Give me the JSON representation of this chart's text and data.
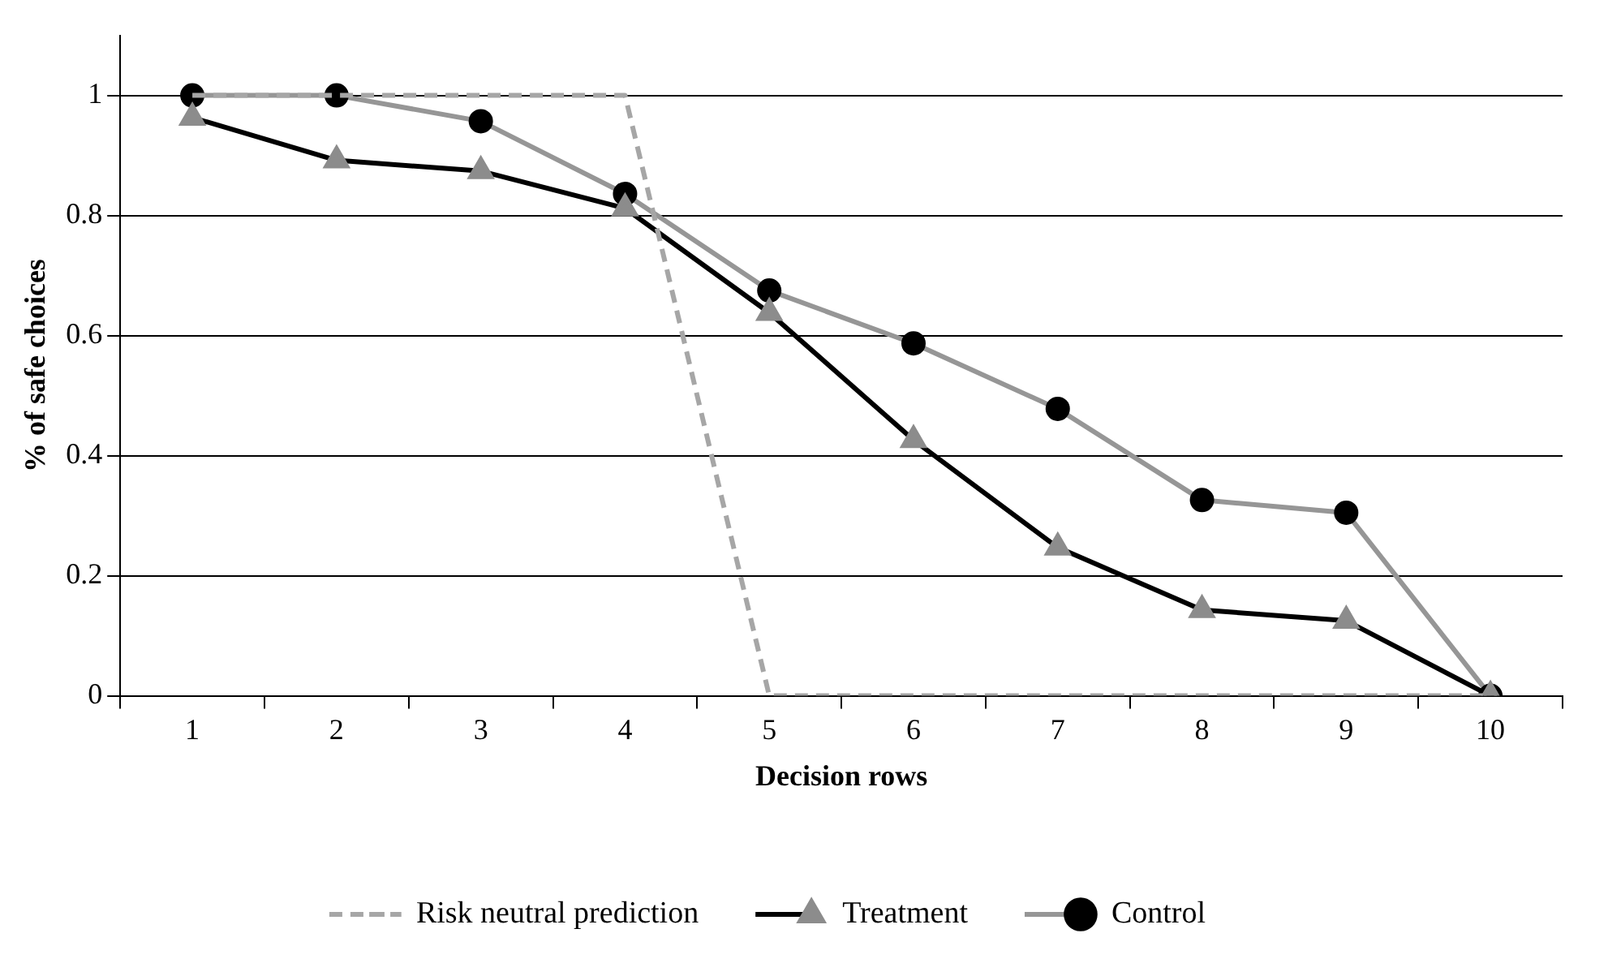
{
  "chart_data": {
    "type": "line",
    "xlabel": "Decision rows",
    "ylabel": "% of safe choices",
    "categories": [
      "1",
      "2",
      "3",
      "4",
      "5",
      "6",
      "7",
      "8",
      "9",
      "10"
    ],
    "series": [
      {
        "name": "Risk neutral prediction",
        "color": "#a6a6a6",
        "line_style": "dashed",
        "marker": "none",
        "values": [
          1,
          1,
          1,
          1,
          0,
          0,
          0,
          0,
          0,
          0
        ]
      },
      {
        "name": "Treatment",
        "color": "#000000",
        "colors": [
          "#8c8c8c",
          "#8c8c8c",
          "#8c8c8c",
          "#8c8c8c",
          "#8c8c8c",
          "#8c8c8c",
          "#8c8c8c",
          "#8c8c8c",
          "#8c8c8c",
          "#8c8c8c"
        ],
        "line_style": "solid",
        "marker": "triangle",
        "values": [
          0.963,
          0.892,
          0.874,
          0.812,
          0.638,
          0.426,
          0.247,
          0.143,
          0.125,
          0
        ]
      },
      {
        "name": "Control",
        "color": "#969696",
        "colors": [
          "#000000",
          "#000000",
          "#000000",
          "#000000",
          "#000000",
          "#000000",
          "#000000",
          "#000000",
          "#000000",
          "#000000"
        ],
        "line_style": "solid",
        "marker": "circle",
        "values": [
          1,
          1,
          0.957,
          0.836,
          0.675,
          0.587,
          0.478,
          0.326,
          0.305,
          0
        ]
      }
    ],
    "ylim": [
      0,
      1.1
    ],
    "yticks": [
      0,
      0.2,
      0.4,
      0.6,
      0.8,
      1
    ],
    "grid": "y",
    "legend": "bottom"
  }
}
